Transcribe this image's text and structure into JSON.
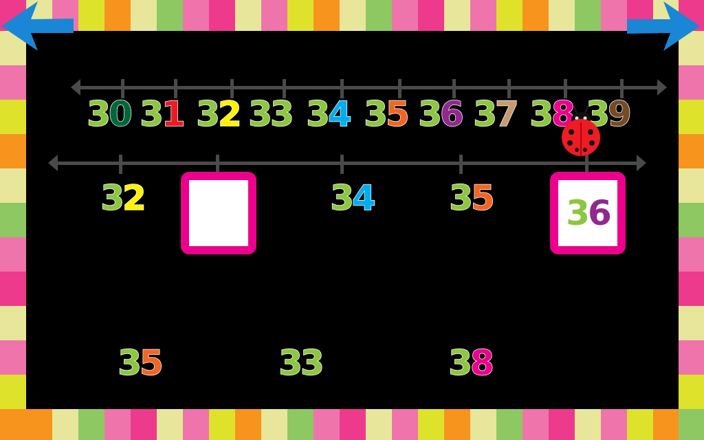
{
  "border_colors": [
    "#e8e69a",
    "#ef74ac",
    "#dfe22a",
    "#f7941d",
    "#e8e69a",
    "#8dc863",
    "#ef74ac",
    "#ee3a8c"
  ],
  "digit_colors": {
    "0": "#006838",
    "1": "#ed1c24",
    "2": "#fff200",
    "3": "#8dc63f",
    "4": "#00aeef",
    "5": "#f26522",
    "6": "#92278f",
    "7": "#c69c6d",
    "8": "#ec008c",
    "9": "#754c24"
  },
  "tens_color": "#8dc63f",
  "nav": {
    "back_icon": "arrow-left-icon",
    "next_icon": "arrow-right-icon",
    "arrow_color": "#1a86d6"
  },
  "reference_line": {
    "numbers": [
      "30",
      "31",
      "32",
      "33",
      "34",
      "35",
      "36",
      "37",
      "38",
      "39"
    ],
    "marker_at": "38"
  },
  "puzzle_line": {
    "slots": [
      {
        "label": "32",
        "type": "given"
      },
      {
        "label": "",
        "type": "empty-box"
      },
      {
        "label": "34",
        "type": "given"
      },
      {
        "label": "35",
        "type": "given"
      },
      {
        "label": "36",
        "type": "filled-box"
      }
    ]
  },
  "choices": [
    "35",
    "33",
    "38"
  ],
  "box_color": "#ec008c"
}
